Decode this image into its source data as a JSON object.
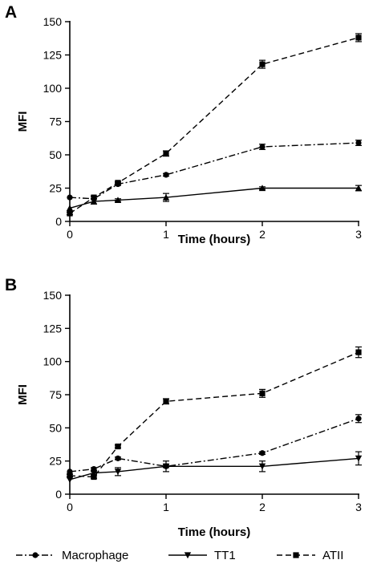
{
  "chart_data": [
    {
      "type": "line",
      "panel_label": "A",
      "xlabel": "Time (hours)",
      "ylabel": "MFI",
      "xlim": [
        0,
        3
      ],
      "ylim": [
        0,
        150
      ],
      "x_ticks": [
        "0",
        "1",
        "2",
        "3"
      ],
      "y_ticks": [
        "0",
        "25",
        "50",
        "75",
        "100",
        "125",
        "150"
      ],
      "grid": false,
      "series": [
        {
          "name": "Macrophage",
          "marker": "circle",
          "line_style": "dash-dot",
          "x": [
            0,
            0.25,
            0.5,
            1,
            2,
            3
          ],
          "y": [
            18,
            17,
            28,
            35,
            56,
            59
          ],
          "error": [
            0,
            0,
            1,
            1,
            2,
            2
          ]
        },
        {
          "name": "TT1",
          "marker": "triangle-up",
          "line_style": "solid",
          "x": [
            0,
            0.25,
            0.5,
            1,
            2,
            3
          ],
          "y": [
            10,
            15,
            16,
            18,
            25,
            25
          ],
          "error": [
            0,
            2,
            1,
            3,
            1,
            2
          ]
        },
        {
          "name": "ATII",
          "marker": "square",
          "line_style": "dashed",
          "x": [
            0,
            0.25,
            0.5,
            1,
            2,
            3
          ],
          "y": [
            6,
            18,
            29,
            51,
            118,
            138
          ],
          "error": [
            1,
            1,
            1,
            2,
            3,
            3
          ]
        }
      ]
    },
    {
      "type": "line",
      "panel_label": "B",
      "xlabel": "Time (hours)",
      "ylabel": "MFI",
      "xlim": [
        0,
        3
      ],
      "ylim": [
        0,
        150
      ],
      "x_ticks": [
        "0",
        "1",
        "2",
        "3"
      ],
      "y_ticks": [
        "0",
        "25",
        "50",
        "75",
        "100",
        "125",
        "150"
      ],
      "grid": false,
      "series": [
        {
          "name": "Macrophage",
          "marker": "circle",
          "line_style": "dash-dot",
          "x": [
            0,
            0.25,
            0.5,
            1,
            2,
            3
          ],
          "y": [
            17,
            19,
            27,
            21,
            31,
            57
          ],
          "error": [
            0,
            1,
            1,
            1,
            1,
            3
          ]
        },
        {
          "name": "TT1",
          "marker": "triangle-down",
          "line_style": "solid",
          "x": [
            0,
            0.25,
            0.5,
            1,
            2,
            3
          ],
          "y": [
            11,
            16,
            17,
            21,
            21,
            27
          ],
          "error": [
            0,
            1,
            3,
            4,
            4,
            5
          ]
        },
        {
          "name": "ATII",
          "marker": "square",
          "line_style": "dashed",
          "x": [
            0,
            0.25,
            0.5,
            1,
            2,
            3
          ],
          "y": [
            14,
            13,
            36,
            70,
            76,
            107
          ],
          "error": [
            1,
            1,
            1,
            2,
            3,
            4
          ]
        }
      ]
    }
  ],
  "legend": {
    "position": "bottom",
    "items": [
      {
        "label": "Macrophage",
        "marker": "circle",
        "line_style": "dash-dot"
      },
      {
        "label": "TT1",
        "marker": "triangle-down",
        "line_style": "solid"
      },
      {
        "label": "ATII",
        "marker": "square",
        "line_style": "dashed"
      }
    ]
  }
}
